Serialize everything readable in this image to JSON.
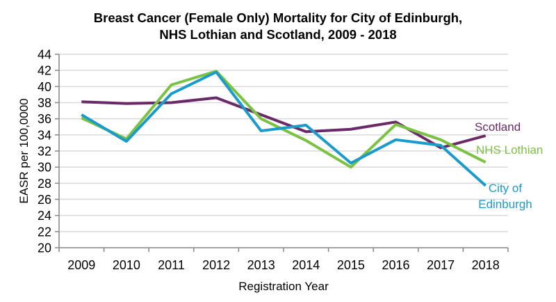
{
  "chart_data": {
    "type": "line",
    "title": [
      "Breast Cancer (Female Only) Mortality for City of Edinburgh,",
      "NHS Lothian and Scotland, 2009 - 2018"
    ],
    "xlabel": "Registration Year",
    "ylabel": "EASR per 100,0000",
    "categories": [
      "2009",
      "2010",
      "2011",
      "2012",
      "2013",
      "2014",
      "2015",
      "2016",
      "2017",
      "2018"
    ],
    "ylim": [
      20,
      44
    ],
    "yticks": [
      20,
      22,
      24,
      26,
      28,
      30,
      32,
      34,
      36,
      38,
      40,
      42,
      44
    ],
    "grid": true,
    "legend": "inline-right",
    "series": [
      {
        "name": "Scotland",
        "label_lines": [
          "Scotland"
        ],
        "color": "#6a2a67",
        "values": [
          38.1,
          37.9,
          38.0,
          38.6,
          36.5,
          34.4,
          34.7,
          35.6,
          32.4,
          33.9
        ]
      },
      {
        "name": "NHS Lothian",
        "label_lines": [
          "NHS Lothian"
        ],
        "color": "#7cc242",
        "values": [
          36.1,
          33.5,
          40.2,
          41.9,
          36.0,
          33.3,
          30.0,
          35.3,
          33.4,
          30.6
        ]
      },
      {
        "name": "City of Edinburgh",
        "label_lines": [
          "City of",
          "Edinburgh"
        ],
        "color": "#1a9bc9",
        "values": [
          36.5,
          33.2,
          39.1,
          41.8,
          34.5,
          35.2,
          30.5,
          33.4,
          32.7,
          27.7
        ]
      }
    ]
  }
}
